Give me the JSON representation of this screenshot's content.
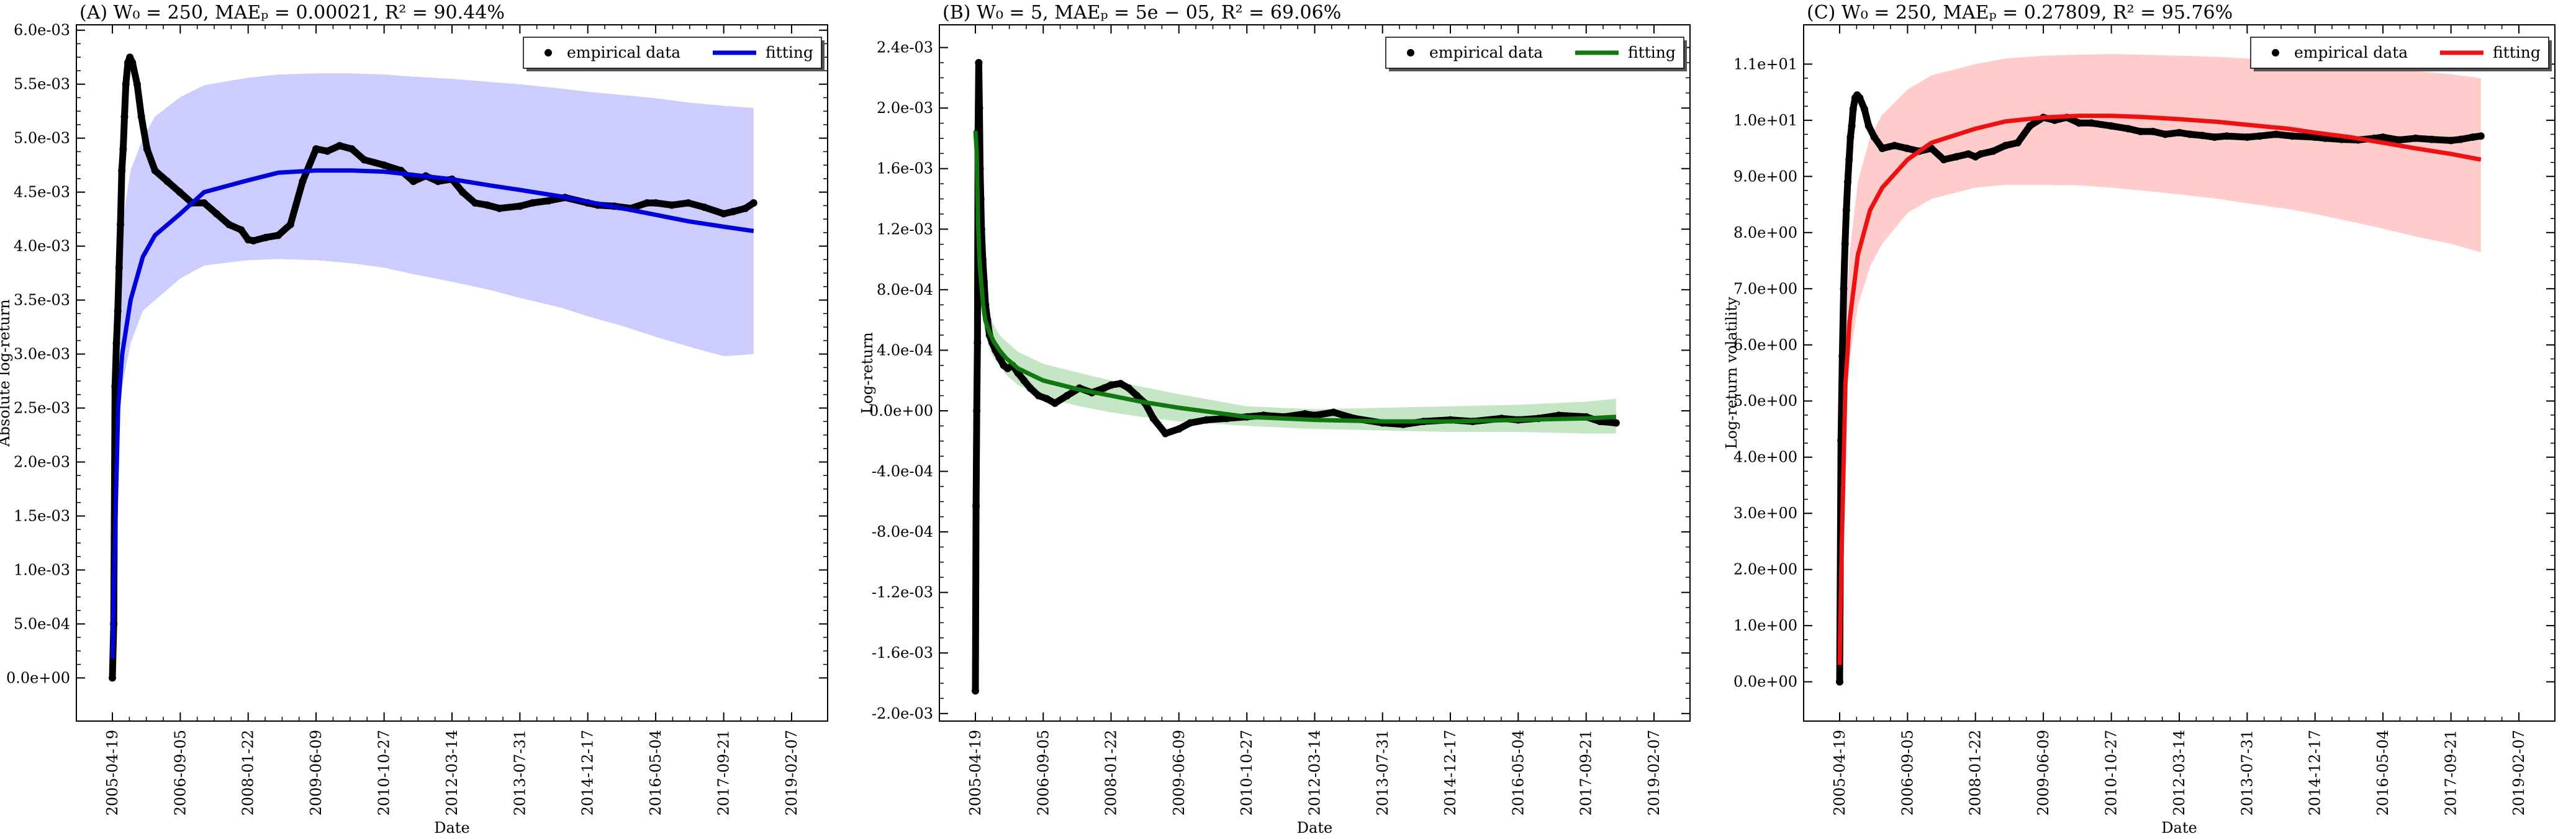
{
  "x_axis": {
    "label": "Date",
    "ticks": [
      "2005-04-19",
      "2006-09-05",
      "2008-01-22",
      "2009-06-09",
      "2010-10-27",
      "2012-03-14",
      "2013-07-31",
      "2014-12-17",
      "2016-05-04",
      "2017-09-21",
      "2019-02-07"
    ]
  },
  "legend_empirical": "empirical data",
  "legend_fitting": "fitting",
  "chart_data": [
    {
      "type": "scatter",
      "title": "(A) W₀ = 250, MAEₚ = 0.00021, R² = 90.44%",
      "xlabel": "Date",
      "ylabel": "Absolute log-return",
      "ylim": [
        -0.0004,
        0.00605
      ],
      "yticks": [
        0,
        0.0005,
        0.001,
        0.0015,
        0.002,
        0.0025,
        0.003,
        0.0035,
        0.004,
        0.0045,
        0.005,
        0.0055,
        0.006
      ],
      "ytick_labels": [
        "0.0e+00",
        "5.0e-04",
        "1.0e-03",
        "1.5e-03",
        "2.0e-03",
        "2.5e-03",
        "3.0e-03",
        "3.5e-03",
        "4.0e-03",
        "4.5e-03",
        "5.0e-03",
        "5.5e-03",
        "6.0e-03"
      ],
      "fit_color": "#0000dd",
      "band_color": "#ccccff",
      "legend": "top-right",
      "empirical": {
        "x": [
          "2005-04-19",
          "2005-04-29",
          "2005-05-09",
          "2005-05-19",
          "2005-05-29",
          "2005-06-08",
          "2005-06-18",
          "2005-06-28",
          "2005-07-08",
          "2005-07-18",
          "2005-07-28",
          "2005-08-12",
          "2005-08-27",
          "2005-09-15",
          "2005-10-20",
          "2005-11-20",
          "2006-01-01",
          "2006-03-01",
          "2006-06-01",
          "2006-09-01",
          "2006-12-01",
          "2007-03-01",
          "2007-06-01",
          "2007-09-01",
          "2007-12-01",
          "2008-01-22",
          "2008-03-01",
          "2008-06-01",
          "2008-09-01",
          "2008-12-01",
          "2009-03-01",
          "2009-06-09",
          "2009-09-01",
          "2009-12-01",
          "2010-03-01",
          "2010-06-01",
          "2010-10-27",
          "2011-03-01",
          "2011-06-01",
          "2011-09-01",
          "2011-12-01",
          "2012-03-14",
          "2012-06-01",
          "2012-09-01",
          "2012-12-01",
          "2013-03-01",
          "2013-07-31",
          "2013-11-01",
          "2014-03-01",
          "2014-07-01",
          "2014-12-17",
          "2015-03-01",
          "2015-07-01",
          "2015-11-01",
          "2016-03-01",
          "2016-05-04",
          "2016-09-01",
          "2017-01-01",
          "2017-05-01",
          "2017-09-21",
          "2017-12-01",
          "2018-03-01",
          "2018-05-01"
        ],
        "y": [
          0.0,
          0.0005,
          0.0027,
          0.0031,
          0.0034,
          0.0038,
          0.0042,
          0.0047,
          0.0049,
          0.0052,
          0.0055,
          0.0057,
          0.00575,
          0.0057,
          0.0055,
          0.0052,
          0.0049,
          0.0047,
          0.0046,
          0.0045,
          0.0044,
          0.0044,
          0.0043,
          0.0042,
          0.00415,
          0.00406,
          0.00405,
          0.00408,
          0.0041,
          0.0042,
          0.0046,
          0.0049,
          0.00488,
          0.00493,
          0.0049,
          0.0048,
          0.00475,
          0.0047,
          0.0046,
          0.00465,
          0.0046,
          0.00462,
          0.0045,
          0.0044,
          0.00438,
          0.00435,
          0.00437,
          0.0044,
          0.00442,
          0.00445,
          0.0044,
          0.00438,
          0.00437,
          0.00435,
          0.0044,
          0.0044,
          0.00438,
          0.0044,
          0.00436,
          0.0043,
          0.00432,
          0.00435,
          0.0044
        ]
      },
      "fit": {
        "x": [
          "2005-04-19",
          "2005-05-01",
          "2005-06-01",
          "2005-07-01",
          "2005-09-01",
          "2005-12-01",
          "2006-03-01",
          "2006-09-05",
          "2007-03-01",
          "2008-01-22",
          "2008-09-01",
          "2009-06-09",
          "2010-03-01",
          "2010-10-27",
          "2011-06-01",
          "2012-03-14",
          "2013-01-01",
          "2013-07-31",
          "2014-06-01",
          "2014-12-17",
          "2015-09-01",
          "2016-05-04",
          "2017-01-01",
          "2017-09-21",
          "2018-05-01"
        ],
        "y": [
          0.00018,
          0.0009,
          0.0025,
          0.003,
          0.0035,
          0.0039,
          0.0041,
          0.0043,
          0.0045,
          0.00461,
          0.00468,
          0.0047,
          0.0047,
          0.00469,
          0.00466,
          0.00462,
          0.00456,
          0.00452,
          0.00446,
          0.00441,
          0.00435,
          0.00429,
          0.00423,
          0.00418,
          0.00414
        ],
        "lower": [
          0.00018,
          0.0009,
          0.0023,
          0.0027,
          0.0031,
          0.0034,
          0.0035,
          0.0037,
          0.00382,
          0.00387,
          0.00388,
          0.00387,
          0.00384,
          0.0038,
          0.00374,
          0.00367,
          0.00359,
          0.00352,
          0.00343,
          0.00335,
          0.00326,
          0.00316,
          0.00307,
          0.00298,
          0.003
        ],
        "upper": [
          0.00018,
          0.003,
          0.0038,
          0.0042,
          0.0047,
          0.005,
          0.0052,
          0.00538,
          0.00549,
          0.00556,
          0.00559,
          0.0056,
          0.0056,
          0.00559,
          0.00557,
          0.00555,
          0.00552,
          0.0055,
          0.00546,
          0.00543,
          0.0054,
          0.00537,
          0.00533,
          0.0053,
          0.00528
        ]
      }
    },
    {
      "type": "scatter",
      "title": "(B) W₀ = 5, MAEₚ = 5e − 05, R² = 69.06%",
      "xlabel": "Date",
      "ylabel": "Log-return",
      "ylim": [
        -0.00205,
        0.00255
      ],
      "yticks": [
        -0.002,
        -0.0016,
        -0.0012,
        -0.0008,
        -0.0004,
        0,
        0.0004,
        0.0008,
        0.0012,
        0.0016,
        0.002,
        0.0024
      ],
      "ytick_labels": [
        "-2.0e-03",
        "-1.6e-03",
        "-1.2e-03",
        "-8.0e-04",
        "-4.0e-04",
        "0.0e+00",
        "4.0e-04",
        "8.0e-04",
        "1.2e-03",
        "1.6e-03",
        "2.0e-03",
        "2.4e-03"
      ],
      "fit_color": "#117711",
      "band_color": "#c4e6c4",
      "legend": "top-right",
      "empirical": {
        "x": [
          "2005-04-19",
          "2005-04-24",
          "2005-04-29",
          "2005-05-04",
          "2005-05-09",
          "2005-05-14",
          "2005-05-19",
          "2005-05-24",
          "2005-05-29",
          "2005-06-03",
          "2005-06-13",
          "2005-06-23",
          "2005-07-03",
          "2005-07-18",
          "2005-08-02",
          "2005-08-22",
          "2005-09-15",
          "2005-10-15",
          "2005-11-15",
          "2005-12-15",
          "2006-01-20",
          "2006-03-01",
          "2006-04-15",
          "2006-06-01",
          "2006-08-01",
          "2006-10-01",
          "2006-12-01",
          "2007-03-01",
          "2007-06-01",
          "2007-09-01",
          "2007-12-01",
          "2008-01-22",
          "2008-04-01",
          "2008-06-01",
          "2008-08-01",
          "2008-10-01",
          "2008-12-01",
          "2009-03-01",
          "2009-06-09",
          "2009-09-01",
          "2010-01-01",
          "2010-06-01",
          "2010-10-27",
          "2011-03-01",
          "2011-08-01",
          "2012-01-01",
          "2012-03-14",
          "2012-08-01",
          "2013-01-01",
          "2013-07-31",
          "2014-01-01",
          "2014-06-01",
          "2014-12-17",
          "2015-06-01",
          "2016-01-01",
          "2016-05-04",
          "2016-10-01",
          "2017-03-01",
          "2017-09-21",
          "2018-01-01",
          "2018-05-01"
        ],
        "y": [
          -0.00185,
          -0.00063,
          0.0,
          0.00045,
          0.00185,
          0.0023,
          0.002,
          0.0016,
          0.0014,
          0.0012,
          0.001,
          0.00085,
          0.0007,
          0.0006,
          0.0005,
          0.00045,
          0.0004,
          0.00035,
          0.0003,
          0.00028,
          0.0003,
          0.00025,
          0.0002,
          0.00015,
          0.0001,
          8e-05,
          5e-05,
          0.0001,
          0.00015,
          0.00012,
          0.00015,
          0.00017,
          0.00018,
          0.00015,
          0.0001,
          5e-05,
          -5e-05,
          -0.00015,
          -0.00012,
          -8e-05,
          -6e-05,
          -5e-05,
          -4e-05,
          -3e-05,
          -4e-05,
          -2e-05,
          -3e-05,
          -1e-05,
          -5e-05,
          -8e-05,
          -9e-05,
          -7e-05,
          -6e-05,
          -7e-05,
          -5e-05,
          -6e-05,
          -5e-05,
          -3e-05,
          -4e-05,
          -7e-05,
          -8e-05
        ]
      },
      "fit": {
        "x": [
          "2005-04-19",
          "2005-04-29",
          "2005-05-09",
          "2005-05-19",
          "2005-06-01",
          "2005-06-15",
          "2005-07-01",
          "2005-08-01",
          "2005-09-01",
          "2005-10-15",
          "2005-12-01",
          "2006-03-01",
          "2006-09-05",
          "2007-06-01",
          "2008-01-22",
          "2008-09-01",
          "2009-06-09",
          "2010-10-27",
          "2012-03-14",
          "2013-07-31",
          "2014-12-17",
          "2016-05-04",
          "2017-09-21",
          "2018-05-01"
        ],
        "y": [
          0.00185,
          0.0017,
          0.00125,
          0.001,
          0.00085,
          0.0007,
          0.0006,
          0.00052,
          0.00046,
          0.0004,
          0.00035,
          0.00028,
          0.0002,
          0.00014,
          0.0001,
          6e-05,
          2e-05,
          -4e-05,
          -6e-05,
          -7e-05,
          -7e-05,
          -6e-05,
          -5e-05,
          -4e-05
        ],
        "lower": [
          0.00185,
          0.0016,
          0.00115,
          0.0009,
          0.00074,
          0.00059,
          0.0005,
          0.00041,
          0.00035,
          0.0003,
          0.00024,
          0.00017,
          9e-05,
          3e-05,
          -1e-05,
          -4e-05,
          -7e-05,
          -0.0001,
          -0.00012,
          -0.00013,
          -0.00014,
          -0.00014,
          -0.00015,
          -0.00015
        ],
        "upper": [
          0.00185,
          0.0018,
          0.00135,
          0.0011,
          0.00096,
          0.00081,
          0.0007,
          0.00063,
          0.00057,
          0.0005,
          0.00046,
          0.00039,
          0.00031,
          0.00025,
          0.0002,
          0.00016,
          0.00011,
          3e-05,
          1e-05,
          2e-05,
          3e-05,
          4e-05,
          6e-05,
          8e-05
        ]
      }
    },
    {
      "type": "scatter",
      "title": "(C) W₀ = 250, MAEₚ = 0.27809, R² = 95.76%",
      "xlabel": "Date",
      "ylabel": "Log-return volatility",
      "ylim": [
        -0.7,
        11.7
      ],
      "yticks": [
        0,
        1,
        2,
        3,
        4,
        5,
        6,
        7,
        8,
        9,
        10,
        11
      ],
      "ytick_labels": [
        "0.0e+00",
        "1.0e+00",
        "2.0e+00",
        "3.0e+00",
        "4.0e+00",
        "5.0e+00",
        "6.0e+00",
        "7.0e+00",
        "8.0e+00",
        "9.0e+00",
        "1.0e+01",
        "1.1e+01"
      ],
      "fit_color": "#ee1111",
      "band_color": "#ffcccc",
      "legend": "top-right",
      "empirical": {
        "x": [
          "2005-04-19",
          "2005-04-29",
          "2005-05-09",
          "2005-05-19",
          "2005-05-29",
          "2005-06-08",
          "2005-06-18",
          "2005-06-28",
          "2005-07-08",
          "2005-07-18",
          "2005-07-28",
          "2005-08-12",
          "2005-08-27",
          "2005-09-15",
          "2005-10-20",
          "2005-11-20",
          "2006-01-01",
          "2006-03-01",
          "2006-06-01",
          "2006-09-01",
          "2006-12-01",
          "2007-03-01",
          "2007-06-01",
          "2007-09-01",
          "2007-12-01",
          "2008-01-22",
          "2008-03-01",
          "2008-06-01",
          "2008-09-01",
          "2008-12-01",
          "2009-03-01",
          "2009-06-09",
          "2009-09-01",
          "2009-12-01",
          "2010-03-01",
          "2010-06-01",
          "2010-10-27",
          "2011-03-01",
          "2011-06-01",
          "2011-09-01",
          "2011-12-01",
          "2012-03-14",
          "2012-06-01",
          "2012-09-01",
          "2012-12-01",
          "2013-03-01",
          "2013-07-31",
          "2013-11-01",
          "2014-03-01",
          "2014-07-01",
          "2014-12-17",
          "2015-03-01",
          "2015-07-01",
          "2015-11-01",
          "2016-03-01",
          "2016-05-04",
          "2016-09-01",
          "2017-01-01",
          "2017-05-01",
          "2017-09-21",
          "2017-12-01",
          "2018-03-01",
          "2018-05-01"
        ],
        "y": [
          0.0,
          4.3,
          5.8,
          7.0,
          7.8,
          8.4,
          8.9,
          9.3,
          9.7,
          9.9,
          10.2,
          10.4,
          10.45,
          10.4,
          10.2,
          9.9,
          9.7,
          9.5,
          9.55,
          9.5,
          9.45,
          9.5,
          9.3,
          9.35,
          9.4,
          9.35,
          9.4,
          9.45,
          9.55,
          9.6,
          9.9,
          10.05,
          10.0,
          10.05,
          9.95,
          9.95,
          9.9,
          9.85,
          9.8,
          9.8,
          9.75,
          9.78,
          9.75,
          9.73,
          9.7,
          9.72,
          9.7,
          9.72,
          9.75,
          9.72,
          9.7,
          9.68,
          9.66,
          9.65,
          9.68,
          9.7,
          9.65,
          9.68,
          9.66,
          9.64,
          9.66,
          9.7,
          9.72
        ]
      },
      "fit": {
        "x": [
          "2005-04-19",
          "2005-05-01",
          "2005-06-01",
          "2005-07-01",
          "2005-09-01",
          "2005-12-01",
          "2006-03-01",
          "2006-09-05",
          "2007-03-01",
          "2008-01-22",
          "2008-09-01",
          "2009-06-09",
          "2010-03-01",
          "2010-10-27",
          "2011-06-01",
          "2012-03-14",
          "2013-01-01",
          "2013-07-31",
          "2014-06-01",
          "2014-12-17",
          "2015-09-01",
          "2016-05-04",
          "2017-01-01",
          "2017-09-21",
          "2018-05-01"
        ],
        "y": [
          0.3,
          2.0,
          5.3,
          6.4,
          7.6,
          8.4,
          8.8,
          9.3,
          9.6,
          9.85,
          9.98,
          10.05,
          10.08,
          10.08,
          10.06,
          10.02,
          9.97,
          9.92,
          9.85,
          9.78,
          9.7,
          9.6,
          9.5,
          9.4,
          9.3
        ],
        "lower": [
          0.3,
          2.0,
          4.8,
          5.7,
          6.7,
          7.4,
          7.8,
          8.35,
          8.6,
          8.8,
          8.85,
          8.85,
          8.84,
          8.8,
          8.75,
          8.68,
          8.6,
          8.52,
          8.42,
          8.33,
          8.2,
          8.07,
          7.93,
          7.8,
          7.65
        ],
        "upper": [
          0.3,
          2.0,
          6.5,
          7.6,
          8.9,
          9.7,
          10.1,
          10.55,
          10.8,
          11.0,
          11.1,
          11.15,
          11.17,
          11.18,
          11.17,
          11.15,
          11.13,
          11.1,
          11.07,
          11.03,
          10.98,
          10.93,
          10.88,
          10.82,
          10.75
        ]
      }
    }
  ]
}
